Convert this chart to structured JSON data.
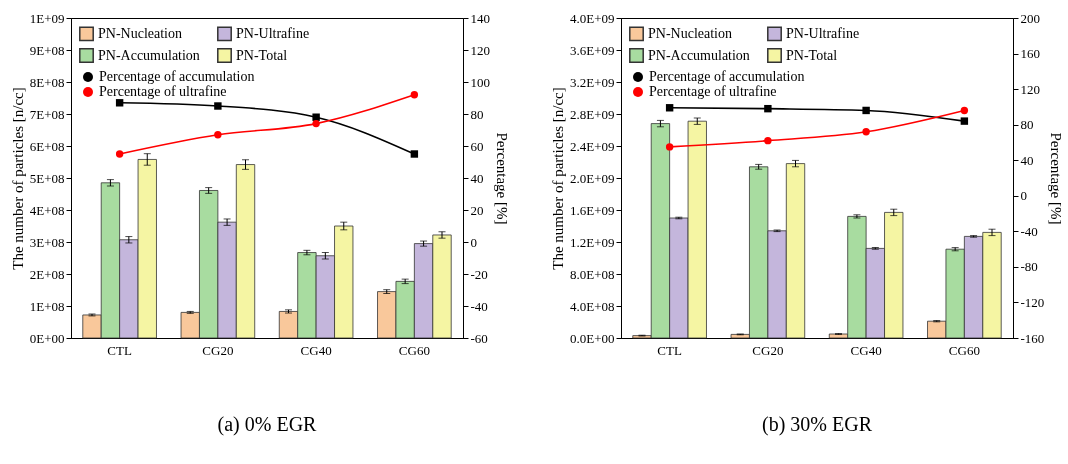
{
  "chart_data": [
    {
      "type": "bar",
      "title": "(a) 0% EGR",
      "ylabel": "The number of particles [n/cc]",
      "y2label": "Percentage [%]",
      "categories": [
        "CTL",
        "CG20",
        "CG40",
        "CG60"
      ],
      "series": [
        {
          "name": "PN-Nucleation",
          "color": "#f9c89b",
          "values": [
            72000000,
            80000000,
            83000000,
            145000000
          ],
          "errors": [
            3000000,
            3000000,
            5000000,
            6000000
          ]
        },
        {
          "name": "PN-Accumulation",
          "color": "#a8dca0",
          "values": [
            485000000,
            461000000,
            267000000,
            177000000
          ],
          "errors": [
            10000000,
            9000000,
            7000000,
            7000000
          ]
        },
        {
          "name": "PN-Ultrafine",
          "color": "#c4b6dc",
          "values": [
            307000000,
            362000000,
            257000000,
            295000000
          ],
          "errors": [
            10000000,
            10000000,
            10000000,
            8000000
          ]
        },
        {
          "name": "PN-Total",
          "color": "#f5f5a3",
          "values": [
            558000000,
            542000000,
            350000000,
            322000000
          ],
          "errors": [
            18000000,
            15000000,
            12000000,
            10000000
          ]
        },
        {
          "name": "Percentage of accumulation",
          "type": "line",
          "axis": "y2",
          "marker": "square",
          "color": "#000000",
          "values": [
            87,
            85,
            78,
            55
          ]
        },
        {
          "name": "Percentage of ultrafine",
          "type": "line",
          "axis": "y2",
          "marker": "circle",
          "color": "#ff0000",
          "values": [
            55,
            67,
            74,
            92
          ]
        }
      ],
      "ylim": [
        0,
        1000000000
      ],
      "yticks": [
        {
          "value": 0,
          "label": "0E+00"
        },
        {
          "value": 100000000,
          "label": "1E+08"
        },
        {
          "value": 200000000,
          "label": "2E+08"
        },
        {
          "value": 300000000,
          "label": "3E+08"
        },
        {
          "value": 400000000,
          "label": "4E+08"
        },
        {
          "value": 500000000,
          "label": "5E+08"
        },
        {
          "value": 600000000,
          "label": "6E+08"
        },
        {
          "value": 700000000,
          "label": "7E+08"
        },
        {
          "value": 800000000,
          "label": "8E+08"
        },
        {
          "value": 900000000,
          "label": "9E+08"
        },
        {
          "value": 1000000000,
          "label": "1E+09"
        }
      ],
      "y2lim": [
        -60,
        140
      ],
      "y2ticks": [
        -60,
        -40,
        -20,
        0,
        20,
        40,
        60,
        80,
        100,
        120,
        140
      ],
      "legend": "top left",
      "line_style": "solid"
    },
    {
      "type": "bar",
      "title": "(b) 30% EGR",
      "ylabel": "The number of particles [n/cc]",
      "y2label": "Percentage [%]",
      "categories": [
        "CTL",
        "CG20",
        "CG40",
        "CG60"
      ],
      "series": [
        {
          "name": "PN-Nucleation",
          "color": "#f9c89b",
          "values": [
            30000000,
            45000000,
            50000000,
            210000000
          ],
          "errors": [
            5000000,
            5000000,
            5000000,
            8000000
          ]
        },
        {
          "name": "PN-Accumulation",
          "color": "#a8dca0",
          "values": [
            2680000000,
            2140000000,
            1520000000,
            1110000000
          ],
          "errors": [
            40000000,
            30000000,
            20000000,
            20000000
          ]
        },
        {
          "name": "PN-Ultrafine",
          "color": "#c4b6dc",
          "values": [
            1500000000,
            1340000000,
            1120000000,
            1270000000
          ],
          "errors": [
            10000000,
            10000000,
            10000000,
            10000000
          ]
        },
        {
          "name": "PN-Total",
          "color": "#f5f5a3",
          "values": [
            2710000000,
            2180000000,
            1570000000,
            1320000000
          ],
          "errors": [
            40000000,
            40000000,
            40000000,
            40000000
          ]
        },
        {
          "name": "Percentage of accumulation",
          "type": "line",
          "axis": "y2",
          "marker": "square",
          "color": "#000000",
          "values": [
            99,
            98,
            96,
            84
          ]
        },
        {
          "name": "Percentage of ultrafine",
          "type": "line",
          "axis": "y2",
          "marker": "circle",
          "color": "#ff0000",
          "values": [
            55,
            62,
            72,
            96
          ]
        }
      ],
      "ylim": [
        0,
        4000000000
      ],
      "yticks": [
        {
          "value": 0,
          "label": "0.0E+00"
        },
        {
          "value": 400000000,
          "label": "4.0E+08"
        },
        {
          "value": 800000000,
          "label": "8.0E+08"
        },
        {
          "value": 1200000000,
          "label": "1.2E+09"
        },
        {
          "value": 1600000000,
          "label": "1.6E+09"
        },
        {
          "value": 2000000000,
          "label": "2.0E+09"
        },
        {
          "value": 2400000000,
          "label": "2.4E+09"
        },
        {
          "value": 2800000000,
          "label": "2.8E+09"
        },
        {
          "value": 3200000000,
          "label": "3.2E+09"
        },
        {
          "value": 3600000000,
          "label": "3.6E+09"
        },
        {
          "value": 4000000000,
          "label": "4.0E+09"
        }
      ],
      "y2lim": [
        -160,
        200
      ],
      "y2ticks": [
        -160,
        -120,
        -80,
        -40,
        0,
        40,
        80,
        120,
        160,
        200
      ],
      "legend": "top left",
      "line_style": "solid"
    }
  ]
}
